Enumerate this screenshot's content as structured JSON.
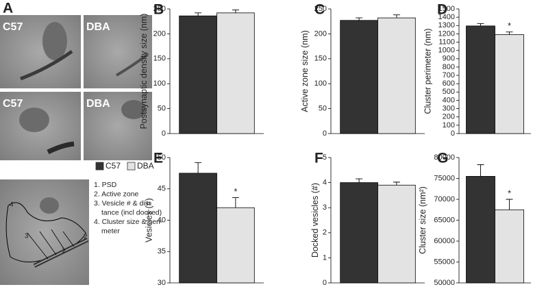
{
  "panel_a": {
    "label": "A",
    "image_labels": [
      "C57",
      "DBA",
      "C57",
      "DBA"
    ],
    "diagram_labels": [
      "4",
      "3",
      "2",
      "1"
    ],
    "key": [
      "1. PSD",
      "2. Active zone",
      "3. Vesicle # & dis-",
      "tance (incl docked)",
      "4. Cluster size & peri-",
      "meter"
    ]
  },
  "chart_data": [
    {
      "type": "bar",
      "label": "B",
      "ylabel": "Postsynaptic density size (nm)",
      "ylim": [
        0,
        250
      ],
      "yticks": [
        0,
        50,
        100,
        150,
        200,
        250
      ],
      "series": [
        {
          "name": "C57",
          "color": "#333333",
          "values": [
            236
          ],
          "errors": [
            6
          ]
        },
        {
          "name": "DBA",
          "color": "#e3e3e3",
          "values": [
            242
          ],
          "errors": [
            6
          ]
        }
      ]
    },
    {
      "type": "bar",
      "label": "C",
      "ylabel": "Active zone size (nm)",
      "ylim": [
        0,
        250
      ],
      "yticks": [
        0,
        50,
        100,
        150,
        200,
        250
      ],
      "series": [
        {
          "name": "C57",
          "color": "#333333",
          "values": [
            227
          ],
          "errors": [
            5
          ]
        },
        {
          "name": "DBA",
          "color": "#e3e3e3",
          "values": [
            232
          ],
          "errors": [
            6
          ]
        }
      ]
    },
    {
      "type": "bar",
      "label": "D",
      "ylabel": "Cluster perimeter (nm)",
      "ylim": [
        0,
        1500
      ],
      "yticks": [
        0,
        100,
        200,
        300,
        400,
        500,
        600,
        700,
        800,
        900,
        1000,
        1100,
        1200,
        1300,
        1400,
        1500
      ],
      "significance": "*",
      "series": [
        {
          "name": "C57",
          "color": "#333333",
          "values": [
            1295
          ],
          "errors": [
            28
          ]
        },
        {
          "name": "DBA",
          "color": "#e3e3e3",
          "values": [
            1190
          ],
          "errors": [
            32
          ]
        }
      ]
    },
    {
      "type": "bar",
      "label": "E",
      "ylabel": "Vesicles (#)",
      "ylim": [
        30,
        50
      ],
      "yticks": [
        30,
        35,
        40,
        45,
        50
      ],
      "significance": "*",
      "series": [
        {
          "name": "C57",
          "color": "#333333",
          "values": [
            47.5
          ],
          "errors": [
            1.7
          ]
        },
        {
          "name": "DBA",
          "color": "#e3e3e3",
          "values": [
            42
          ],
          "errors": [
            1.6
          ]
        }
      ]
    },
    {
      "type": "bar",
      "label": "F",
      "ylabel": "Docked vesicles (#)",
      "ylim": [
        0,
        5
      ],
      "yticks": [
        0,
        1,
        2,
        3,
        4,
        5
      ],
      "series": [
        {
          "name": "C57",
          "color": "#333333",
          "values": [
            4.0
          ],
          "errors": [
            0.15
          ]
        },
        {
          "name": "DBA",
          "color": "#e3e3e3",
          "values": [
            3.9
          ],
          "errors": [
            0.12
          ]
        }
      ]
    },
    {
      "type": "bar",
      "label": "G",
      "ylabel": "Cluster size (nm²)",
      "ylim": [
        50000,
        80000
      ],
      "yticks": [
        50000,
        55000,
        60000,
        65000,
        70000,
        75000,
        80000
      ],
      "significance": "*",
      "series": [
        {
          "name": "C57",
          "color": "#333333",
          "values": [
            75500
          ],
          "errors": [
            2800
          ]
        },
        {
          "name": "DBA",
          "color": "#e3e3e3",
          "values": [
            67500
          ],
          "errors": [
            2500
          ]
        }
      ]
    }
  ]
}
